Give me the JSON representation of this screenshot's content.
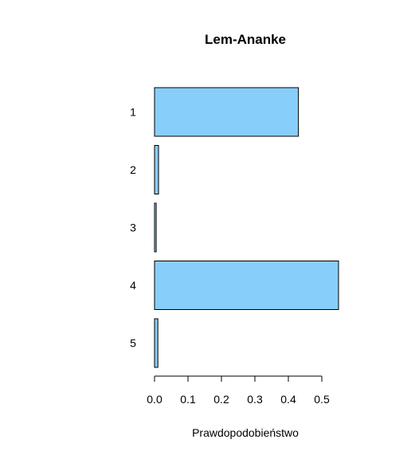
{
  "chart_data": {
    "type": "bar",
    "orientation": "horizontal",
    "title": "Lem-Ananke",
    "xlabel": "Prawdopodobieństwo",
    "ylabel": "",
    "categories": [
      "1",
      "2",
      "3",
      "4",
      "5"
    ],
    "values": [
      0.43,
      0.012,
      0.005,
      0.55,
      0.01
    ],
    "xlim": [
      0,
      0.55
    ],
    "xticks": [
      0.0,
      0.1,
      0.2,
      0.3,
      0.4,
      0.5
    ],
    "xtick_labels": [
      "0.0",
      "0.1",
      "0.2",
      "0.3",
      "0.4",
      "0.5"
    ],
    "bar_color": "#87CEFA",
    "bar_border": "#000000",
    "grid": false,
    "legend": "none"
  }
}
